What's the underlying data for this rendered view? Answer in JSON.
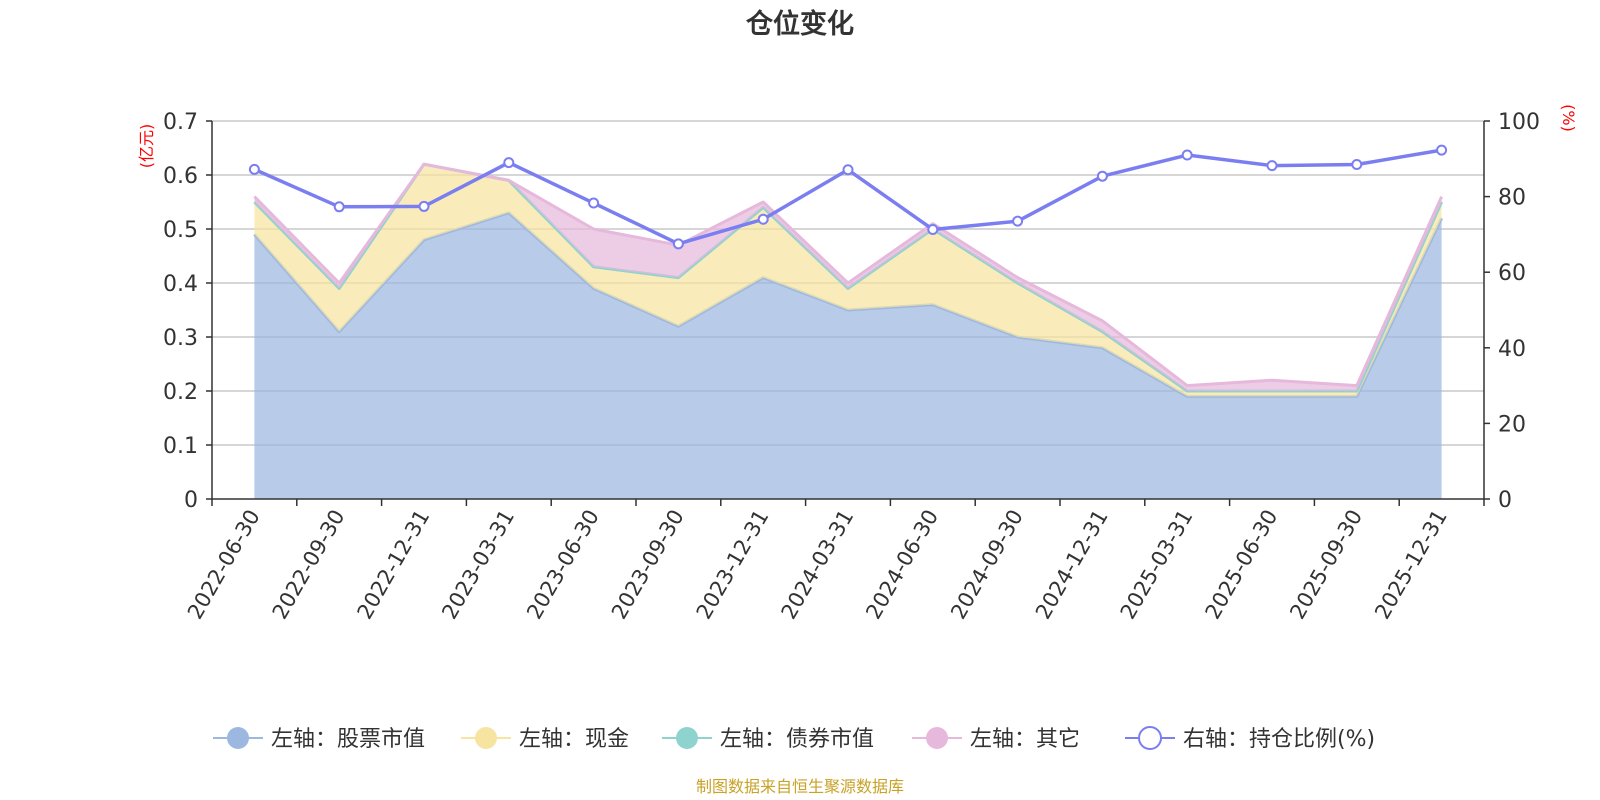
{
  "chart_data": {
    "type": "area",
    "title": "仓位变化",
    "categories": [
      "2022-06-30",
      "2022-09-30",
      "2022-12-31",
      "2023-03-31",
      "2023-06-30",
      "2023-09-30",
      "2023-12-31",
      "2024-03-31",
      "2024-06-30",
      "2024-09-30",
      "2024-12-31",
      "2025-03-31",
      "2025-06-30",
      "2025-09-30",
      "2025-12-31"
    ],
    "left_axis": {
      "unit": "(亿元)",
      "min": 0,
      "max": 0.7,
      "ticks": [
        "0",
        "0.1",
        "0.2",
        "0.3",
        "0.4",
        "0.5",
        "0.6",
        "0.7"
      ]
    },
    "right_axis": {
      "unit": "(%)",
      "min": 0,
      "max": 100,
      "ticks": [
        "0",
        "20",
        "40",
        "60",
        "80",
        "100"
      ]
    },
    "series": [
      {
        "name": "左轴：股票市值",
        "axis": "left",
        "kind": "stacked-area",
        "color": "#9db8e0",
        "values": [
          0.49,
          0.31,
          0.48,
          0.53,
          0.39,
          0.32,
          0.41,
          0.35,
          0.36,
          0.3,
          0.28,
          0.19,
          0.19,
          0.19,
          0.52
        ]
      },
      {
        "name": "左轴：现金",
        "axis": "left",
        "kind": "stacked-area",
        "color": "#f7e4a0",
        "values": [
          0.06,
          0.08,
          0.14,
          0.06,
          0.04,
          0.09,
          0.13,
          0.04,
          0.14,
          0.1,
          0.03,
          0.01,
          0.01,
          0.01,
          0.03
        ]
      },
      {
        "name": "左轴：债券市值",
        "axis": "left",
        "kind": "stacked-area",
        "color": "#8fd3cf",
        "values": [
          0.0,
          0.0,
          0.0,
          0.0,
          0.0,
          0.0,
          0.0,
          0.0,
          0.0,
          0.0,
          0.0,
          0.0,
          0.0,
          0.0,
          0.0
        ]
      },
      {
        "name": "左轴：其它",
        "axis": "left",
        "kind": "stacked-area",
        "color": "#e6b8dc",
        "values": [
          0.01,
          0.01,
          0.0,
          0.0,
          0.07,
          0.06,
          0.01,
          0.01,
          0.01,
          0.01,
          0.02,
          0.01,
          0.02,
          0.01,
          0.01
        ]
      },
      {
        "name": "右轴：持仓比例(%)",
        "axis": "right",
        "kind": "line",
        "color": "#7b7ef0",
        "values": [
          87.2,
          77.3,
          77.4,
          89.0,
          78.3,
          67.5,
          74.0,
          87.1,
          71.3,
          73.5,
          85.4,
          91.0,
          88.2,
          88.5,
          92.3
        ]
      }
    ],
    "legend_position": "bottom",
    "grid": true
  },
  "source_note": "制图数据来自恒生聚源数据库"
}
